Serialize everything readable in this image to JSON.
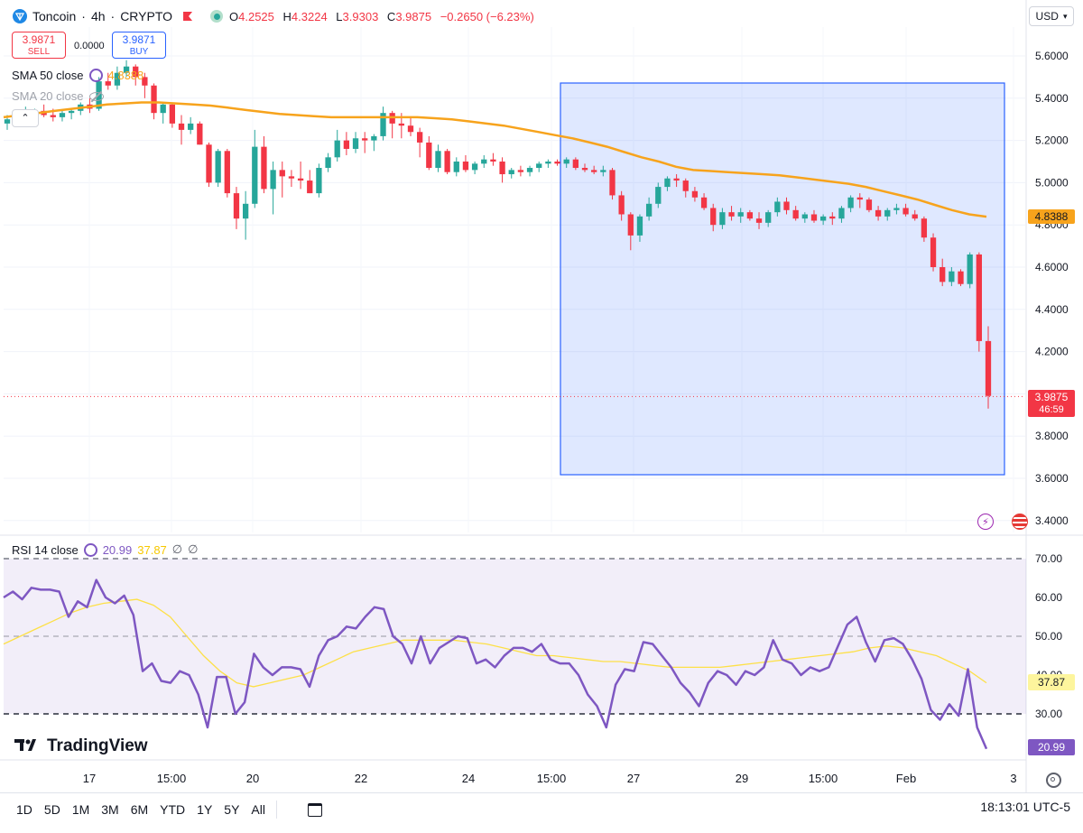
{
  "header": {
    "symbol": "Toncoin",
    "separator": " · ",
    "interval": "4h",
    "exchange": "CRYPTO",
    "ohlc": {
      "o_label": "O",
      "o": "4.2525",
      "h_label": "H",
      "h": "4.3224",
      "l_label": "L",
      "l": "3.9303",
      "c_label": "C",
      "c": "3.9875",
      "change": "−0.2650 (−6.23%)"
    },
    "currency": "USD"
  },
  "trade": {
    "sell_price": "3.9871",
    "sell_label": "SELL",
    "spread": "0.0000",
    "buy_price": "3.9871",
    "buy_label": "BUY"
  },
  "indicators": {
    "sma50": {
      "label": "SMA 50 close",
      "value": "4.8388",
      "color": "#f7a31c"
    },
    "sma20": {
      "label": "SMA 20 close"
    },
    "rsi": {
      "label": "RSI 14 close",
      "value": "20.99",
      "sma_value": "37.87",
      "na1": "∅",
      "na2": "∅"
    },
    "collapse_icon": "chevron-up-icon"
  },
  "price_axis": {
    "ticks": [
      "5.6000",
      "5.4000",
      "5.2000",
      "5.0000",
      "4.8000",
      "4.6000",
      "4.4000",
      "4.2000",
      "4.0000",
      "3.8000",
      "3.6000",
      "3.4000"
    ],
    "sma_tag": "4.8388",
    "last_price": "3.9875",
    "countdown": "46:59"
  },
  "rsi_axis": {
    "ticks": [
      "70.00",
      "60.00",
      "50.00",
      "40.00",
      "30.00"
    ],
    "sma_tag": "37.87",
    "rsi_tag": "20.99"
  },
  "time_axis": {
    "labels": [
      "17",
      "15:00",
      "20",
      "22",
      "24",
      "15:00",
      "27",
      "29",
      "15:00",
      "Feb",
      "3"
    ]
  },
  "colors": {
    "up": "#26a69a",
    "down": "#f23645",
    "sma50": "#f7a31c",
    "rsi": "#7e57c2",
    "rsi_sma": "#fde047",
    "selection": "#2962ff"
  },
  "chart_data": {
    "type": "candlestick",
    "ylim": [
      3.35,
      5.7
    ],
    "candles": [
      [
        5.28,
        5.32,
        5.25,
        5.3
      ],
      [
        5.3,
        5.34,
        5.28,
        5.31
      ],
      [
        5.31,
        5.36,
        5.29,
        5.33
      ],
      [
        5.33,
        5.35,
        5.3,
        5.34
      ],
      [
        5.34,
        5.37,
        5.31,
        5.32
      ],
      [
        5.32,
        5.35,
        5.29,
        5.31
      ],
      [
        5.31,
        5.34,
        5.29,
        5.33
      ],
      [
        5.33,
        5.35,
        5.3,
        5.34
      ],
      [
        5.34,
        5.38,
        5.32,
        5.37
      ],
      [
        5.37,
        5.4,
        5.33,
        5.35
      ],
      [
        5.35,
        5.5,
        5.34,
        5.48
      ],
      [
        5.48,
        5.52,
        5.44,
        5.46
      ],
      [
        5.46,
        5.55,
        5.44,
        5.52
      ],
      [
        5.52,
        5.58,
        5.5,
        5.55
      ],
      [
        5.55,
        5.56,
        5.46,
        5.5
      ],
      [
        5.5,
        5.52,
        5.4,
        5.46
      ],
      [
        5.46,
        5.47,
        5.3,
        5.33
      ],
      [
        5.33,
        5.38,
        5.28,
        5.37
      ],
      [
        5.37,
        5.38,
        5.26,
        5.28
      ],
      [
        5.28,
        5.32,
        5.18,
        5.25
      ],
      [
        5.25,
        5.31,
        5.23,
        5.28
      ],
      [
        5.28,
        5.29,
        5.18,
        5.18
      ],
      [
        5.18,
        5.19,
        4.98,
        5.0
      ],
      [
        5.0,
        5.16,
        4.98,
        5.15
      ],
      [
        5.15,
        5.16,
        4.93,
        4.95
      ],
      [
        4.95,
        4.98,
        4.78,
        4.83
      ],
      [
        4.83,
        4.96,
        4.73,
        4.9
      ],
      [
        4.9,
        5.25,
        4.88,
        5.17
      ],
      [
        5.17,
        5.22,
        4.95,
        4.97
      ],
      [
        4.97,
        5.1,
        4.85,
        5.06
      ],
      [
        5.06,
        5.1,
        4.93,
        5.03
      ],
      [
        5.03,
        5.06,
        4.98,
        5.02
      ],
      [
        5.02,
        5.1,
        4.97,
        5.01
      ],
      [
        5.01,
        5.06,
        4.95,
        4.95
      ],
      [
        4.95,
        5.09,
        4.93,
        5.07
      ],
      [
        5.07,
        5.14,
        5.05,
        5.12
      ],
      [
        5.12,
        5.25,
        5.1,
        5.2
      ],
      [
        5.2,
        5.24,
        5.13,
        5.16
      ],
      [
        5.16,
        5.24,
        5.14,
        5.21
      ],
      [
        5.21,
        5.24,
        5.14,
        5.2
      ],
      [
        5.2,
        5.23,
        5.15,
        5.22
      ],
      [
        5.22,
        5.36,
        5.2,
        5.33
      ],
      [
        5.33,
        5.34,
        5.21,
        5.28
      ],
      [
        5.28,
        5.33,
        5.21,
        5.27
      ],
      [
        5.27,
        5.31,
        5.22,
        5.24
      ],
      [
        5.24,
        5.26,
        5.12,
        5.19
      ],
      [
        5.19,
        5.22,
        5.06,
        5.07
      ],
      [
        5.07,
        5.18,
        5.05,
        5.15
      ],
      [
        5.15,
        5.16,
        5.04,
        5.05
      ],
      [
        5.05,
        5.12,
        5.03,
        5.1
      ],
      [
        5.1,
        5.13,
        5.05,
        5.06
      ],
      [
        5.06,
        5.1,
        5.04,
        5.09
      ],
      [
        5.09,
        5.13,
        5.07,
        5.11
      ],
      [
        5.11,
        5.14,
        5.08,
        5.1
      ],
      [
        5.1,
        5.12,
        5.0,
        5.04
      ],
      [
        5.04,
        5.07,
        5.02,
        5.06
      ],
      [
        5.06,
        5.08,
        5.03,
        5.05
      ],
      [
        5.05,
        5.08,
        5.03,
        5.07
      ],
      [
        5.07,
        5.1,
        5.05,
        5.09
      ],
      [
        5.09,
        5.11,
        5.07,
        5.1
      ],
      [
        5.1,
        5.11,
        5.08,
        5.09
      ],
      [
        5.09,
        5.12,
        5.07,
        5.11
      ],
      [
        5.11,
        5.12,
        5.06,
        5.07
      ],
      [
        5.07,
        5.09,
        5.05,
        5.06
      ],
      [
        5.06,
        5.08,
        5.04,
        5.05
      ],
      [
        5.05,
        5.08,
        5.03,
        5.06
      ],
      [
        5.06,
        5.07,
        4.92,
        4.94
      ],
      [
        4.94,
        4.96,
        4.82,
        4.85
      ],
      [
        4.85,
        4.86,
        4.68,
        4.75
      ],
      [
        4.75,
        4.85,
        4.72,
        4.84
      ],
      [
        4.84,
        4.93,
        4.82,
        4.9
      ],
      [
        4.9,
        5.0,
        4.88,
        4.98
      ],
      [
        4.98,
        5.03,
        4.96,
        5.02
      ],
      [
        5.02,
        5.04,
        4.98,
        5.01
      ],
      [
        5.01,
        5.02,
        4.93,
        4.96
      ],
      [
        4.96,
        4.98,
        4.91,
        4.93
      ],
      [
        4.93,
        4.95,
        4.87,
        4.88
      ],
      [
        4.88,
        4.9,
        4.77,
        4.8
      ],
      [
        4.8,
        4.88,
        4.78,
        4.86
      ],
      [
        4.86,
        4.89,
        4.82,
        4.84
      ],
      [
        4.84,
        4.88,
        4.81,
        4.86
      ],
      [
        4.86,
        4.87,
        4.82,
        4.83
      ],
      [
        4.83,
        4.86,
        4.78,
        4.81
      ],
      [
        4.81,
        4.87,
        4.79,
        4.86
      ],
      [
        4.86,
        4.93,
        4.84,
        4.91
      ],
      [
        4.91,
        4.93,
        4.85,
        4.87
      ],
      [
        4.87,
        4.89,
        4.82,
        4.83
      ],
      [
        4.83,
        4.86,
        4.81,
        4.85
      ],
      [
        4.85,
        4.87,
        4.81,
        4.82
      ],
      [
        4.82,
        4.85,
        4.8,
        4.84
      ],
      [
        4.84,
        4.86,
        4.8,
        4.83
      ],
      [
        4.83,
        4.89,
        4.81,
        4.88
      ],
      [
        4.88,
        4.94,
        4.86,
        4.93
      ],
      [
        4.93,
        4.95,
        4.88,
        4.92
      ],
      [
        4.92,
        4.93,
        4.86,
        4.87
      ],
      [
        4.87,
        4.89,
        4.82,
        4.84
      ],
      [
        4.84,
        4.88,
        4.82,
        4.87
      ],
      [
        4.87,
        4.9,
        4.85,
        4.88
      ],
      [
        4.88,
        4.9,
        4.84,
        4.85
      ],
      [
        4.85,
        4.87,
        4.82,
        4.83
      ],
      [
        4.83,
        4.84,
        4.72,
        4.74
      ],
      [
        4.74,
        4.76,
        4.58,
        4.6
      ],
      [
        4.6,
        4.64,
        4.51,
        4.53
      ],
      [
        4.53,
        4.6,
        4.51,
        4.58
      ],
      [
        4.58,
        4.59,
        4.51,
        4.52
      ],
      [
        4.52,
        4.67,
        4.5,
        4.66
      ],
      [
        4.66,
        4.67,
        4.2,
        4.25
      ],
      [
        4.25,
        4.32,
        3.93,
        3.99
      ]
    ],
    "sma50": [
      5.31,
      5.32,
      5.33,
      5.34,
      5.35,
      5.36,
      5.37,
      5.375,
      5.38,
      5.38,
      5.375,
      5.37,
      5.365,
      5.355,
      5.345,
      5.335,
      5.325,
      5.32,
      5.315,
      5.31,
      5.31,
      5.31,
      5.31,
      5.31,
      5.31,
      5.305,
      5.3,
      5.29,
      5.28,
      5.27,
      5.255,
      5.24,
      5.225,
      5.21,
      5.19,
      5.17,
      5.145,
      5.12,
      5.1,
      5.075,
      5.06,
      5.055,
      5.05,
      5.045,
      5.04,
      5.035,
      5.025,
      5.015,
      5.005,
      4.995,
      4.98,
      4.96,
      4.94,
      4.92,
      4.895,
      4.87,
      4.85,
      4.8388
    ],
    "rsi": [
      60,
      61.5,
      59.5,
      62.5,
      62,
      62,
      61.5,
      55,
      59,
      57.5,
      64.5,
      60,
      58.5,
      60.5,
      55.5,
      41,
      43,
      38.5,
      38,
      41,
      40,
      35,
      26.5,
      39.5,
      39.5,
      30,
      33,
      45.5,
      42,
      40,
      42,
      42,
      41.5,
      37,
      45,
      49,
      50,
      52.5,
      52,
      55,
      57.5,
      57,
      50,
      48,
      43,
      50,
      43,
      47,
      48.5,
      50,
      49.5,
      43,
      44,
      42,
      45,
      47,
      47,
      46,
      48,
      44,
      43,
      43,
      40,
      35,
      32,
      26.5,
      37.5,
      41.5,
      41,
      48.5,
      48,
      45,
      42,
      38,
      35.5,
      32,
      38,
      41,
      40,
      37.5,
      41,
      40,
      42,
      49,
      44,
      43,
      40,
      42,
      41,
      42,
      47.5,
      53,
      55,
      48.5,
      43.5,
      49,
      49.5,
      48,
      44,
      39,
      31,
      28.5,
      32.5,
      29.5,
      41.5,
      26.5,
      21
    ],
    "rsi_sma": [
      48,
      50,
      52,
      54,
      56,
      57.5,
      58.5,
      59,
      59.5,
      58,
      55,
      50,
      45,
      41,
      38,
      37,
      38,
      39,
      40,
      42,
      44,
      46,
      47,
      48,
      49,
      49,
      49,
      49,
      48.5,
      48,
      47,
      46,
      45,
      45,
      44.5,
      44,
      43.5,
      43.5,
      43,
      42.5,
      42,
      42,
      42,
      42,
      42.5,
      43,
      43.5,
      44,
      44.5,
      45,
      45.5,
      46,
      47,
      47.5,
      47,
      46,
      45,
      43,
      41,
      38
    ],
    "time_labels": [
      "17",
      "15:00",
      "20",
      "22",
      "24",
      "15:00",
      "27",
      "29",
      "15:00",
      "Feb",
      "3"
    ]
  }
}
